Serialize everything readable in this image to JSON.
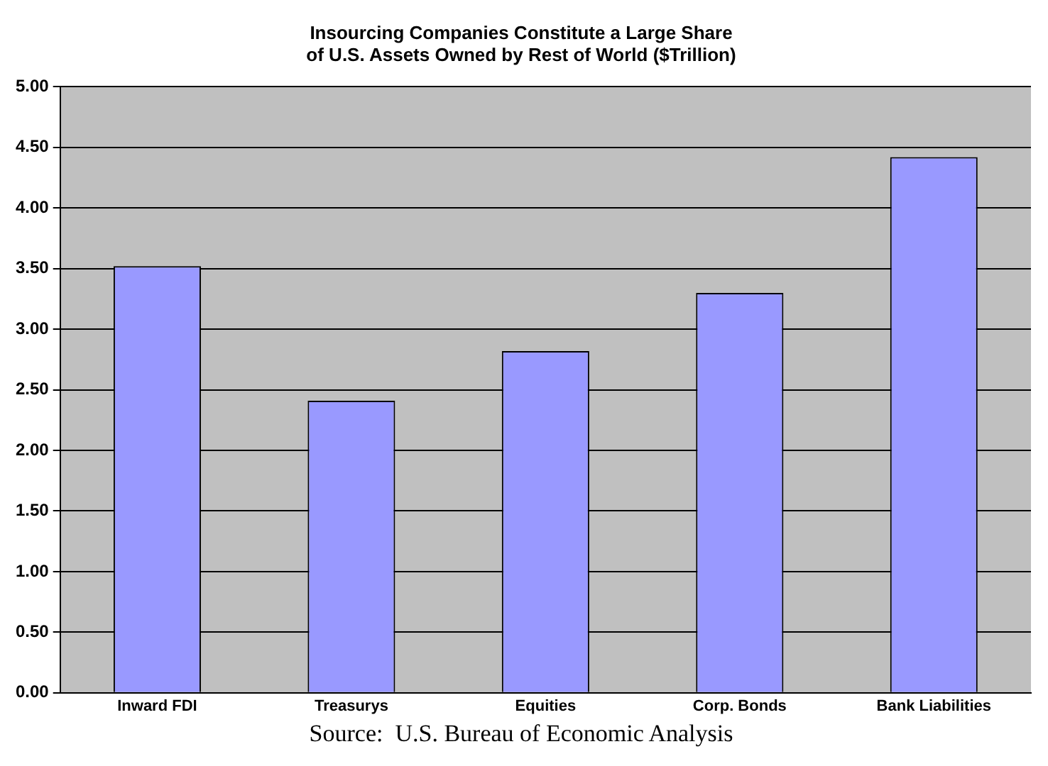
{
  "chart_data": {
    "type": "bar",
    "title": "Insourcing Companies Constitute a Large Share\nof U.S. Assets Owned by Rest of World ($Trillion)",
    "categories": [
      "Inward FDI",
      "Treasurys",
      "Equities",
      "Corp. Bonds",
      "Bank Liabilities"
    ],
    "values": [
      3.52,
      2.41,
      2.82,
      3.3,
      4.42
    ],
    "color": "#9999ff",
    "ylim": [
      0,
      5
    ],
    "yticks": [
      {
        "value": 0,
        "label": "0.00"
      },
      {
        "value": 0.5,
        "label": "0.50"
      },
      {
        "value": 1,
        "label": "1.00"
      },
      {
        "value": 1.5,
        "label": "1.50"
      },
      {
        "value": 2,
        "label": "2.00"
      },
      {
        "value": 2.5,
        "label": "2.50"
      },
      {
        "value": 3,
        "label": "3.00"
      },
      {
        "value": 3.5,
        "label": "3.50"
      },
      {
        "value": 4,
        "label": "4.00"
      },
      {
        "value": 4.5,
        "label": "4.50"
      },
      {
        "value": 5,
        "label": "5.00"
      }
    ],
    "grid": "y",
    "legend": false,
    "annotations": [
      "Source:  U.S. Bureau of Economic Analysis"
    ]
  }
}
